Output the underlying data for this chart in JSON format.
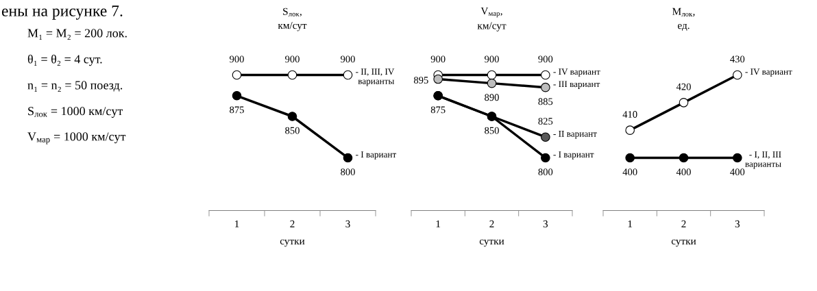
{
  "chart_data": [
    {
      "type": "line",
      "ylabel": "S$_{лок}$,\nкм/сут",
      "xlabel": "сутки",
      "categories": [
        "1",
        "2",
        "3"
      ],
      "marker": "circle",
      "tick_labels": "x",
      "grid": false,
      "legend": false,
      "annotations": [
        "ены на рисунке 7.",
        "M₁ = M₂ = 200 лок.",
        "θ₁ = θ₂ = 4 сут.",
        "n₁ = n₂ = 50 поезд.",
        "S$_{лок}$ = 1000 км/сут",
        "V$_{мар}$ = 1000 км/сут"
      ],
      "series": [
        {
          "name": "- II, III, IV\nварианты",
          "color": "#ffffff",
          "values": [
            900,
            900,
            900
          ],
          "value_labels": [
            "900",
            "900",
            "900"
          ]
        },
        {
          "name": "- I вариант",
          "color": "#000000",
          "values": [
            875,
            850,
            800
          ],
          "value_labels": [
            "875",
            "850",
            "800"
          ]
        }
      ]
    },
    {
      "type": "line",
      "ylabel": "V$_{мар}$,\nкм/сут",
      "xlabel": "сутки",
      "categories": [
        "1",
        "2",
        "3"
      ],
      "marker": "circle",
      "tick_labels": "x",
      "grid": false,
      "legend": false,
      "series": [
        {
          "name": "- IV вариант",
          "color": "#ffffff",
          "values": [
            900,
            900,
            900
          ],
          "value_labels": [
            "900",
            "900",
            "900"
          ]
        },
        {
          "name": "- III вариант",
          "color": "#bdbdbd",
          "values": [
            895,
            890,
            885
          ],
          "value_labels": [
            "895",
            "890",
            "885"
          ]
        },
        {
          "name": "- II вариант",
          "color": "#595959",
          "values": [
            875,
            850,
            825
          ],
          "value_labels": [
            "875",
            "850",
            "825"
          ]
        },
        {
          "name": "- I вариант",
          "color": "#000000",
          "values": [
            875,
            850,
            800
          ],
          "value_labels": [
            null,
            null,
            "800"
          ]
        }
      ]
    },
    {
      "type": "line",
      "ylabel": "M$_{лок}$,\nед.",
      "xlabel": "сутки",
      "categories": [
        "1",
        "2",
        "3"
      ],
      "marker": "circle",
      "tick_labels": "x",
      "grid": false,
      "legend": false,
      "series": [
        {
          "name": "- IV вариант",
          "color": "#ffffff",
          "values": [
            410,
            420,
            430
          ],
          "value_labels": [
            "410",
            "420",
            "430"
          ]
        },
        {
          "name": "- I, II, III\nварианты",
          "color": "#000000",
          "values": [
            400,
            400,
            400
          ],
          "value_labels": [
            "400",
            "400",
            "400"
          ]
        }
      ]
    }
  ]
}
